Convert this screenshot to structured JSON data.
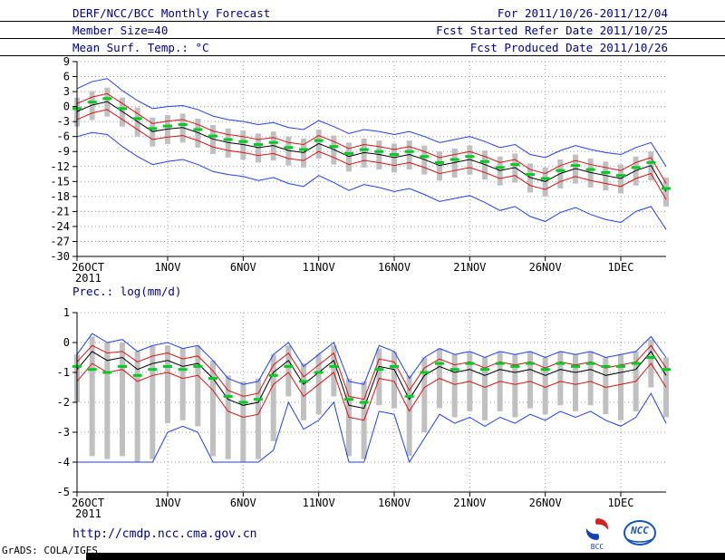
{
  "header": {
    "title": "DERF/NCC/BCC Monthly Forecast",
    "valid_range": "For 2011/10/26-2011/12/04",
    "member_size": "Member Size=40",
    "fcst_start": "Fcst Started Refer Date 2011/10/25",
    "temp_title": "Mean Surf. Temp.: °C",
    "fcst_produced": "Fcst Produced Date 2011/10/26"
  },
  "footer": {
    "url": "http://cmdp.ncc.cma.gov.cn",
    "credit": "GrADS: COLA/IGES",
    "bcc_logo_label": "BCC",
    "ncc_logo_label": "NCC"
  },
  "colors": {
    "header_text": "#00008b",
    "axis": "#000000",
    "grid": "#999999",
    "ensemble_max_min": "#1e3cff",
    "quartiles": "#dd1111",
    "ensemble_mean": "#000000",
    "median_dash": "#00cc22",
    "spread_bar": "#c0c0c0"
  },
  "chart_data": [
    {
      "type": "line",
      "title": "Mean Surf. Temp.: °C",
      "xlabel": "",
      "ylabel": "°C",
      "ylim": [
        -30,
        9
      ],
      "yticks": [
        9,
        6,
        3,
        0,
        -3,
        -6,
        -9,
        -12,
        -15,
        -18,
        -21,
        -24,
        -27,
        -30
      ],
      "x_days": 40,
      "x_sub_label": "2011",
      "xticks": [
        {
          "day": 0,
          "label": "26OCT"
        },
        {
          "day": 6,
          "label": "1NOV"
        },
        {
          "day": 11,
          "label": "6NOV"
        },
        {
          "day": 16,
          "label": "11NOV"
        },
        {
          "day": 21,
          "label": "16NOV"
        },
        {
          "day": 26,
          "label": "21NOV"
        },
        {
          "day": 31,
          "label": "26NOV"
        },
        {
          "day": 36,
          "label": "1DEC"
        }
      ],
      "series": [
        {
          "name": "ensemble-max",
          "color": "#1e3cff",
          "values": [
            3.6,
            5.0,
            5.6,
            3.2,
            1.2,
            -0.4,
            0.0,
            0.2,
            -0.6,
            -1.9,
            -2.6,
            -3.0,
            -3.6,
            -3.2,
            -4.2,
            -4.6,
            -2.8,
            -4.0,
            -5.4,
            -4.6,
            -5.0,
            -5.6,
            -5.0,
            -6.0,
            -7.2,
            -6.6,
            -6.0,
            -7.0,
            -8.2,
            -7.6,
            -9.6,
            -10.2,
            -8.8,
            -7.8,
            -8.6,
            -9.2,
            -9.6,
            -8.2,
            -7.2,
            -12.0
          ]
        },
        {
          "name": "ensemble-min",
          "color": "#1e3cff",
          "values": [
            -6.0,
            -5.2,
            -5.6,
            -8.0,
            -10.0,
            -11.6,
            -11.0,
            -10.6,
            -11.6,
            -13.0,
            -13.6,
            -14.0,
            -14.8,
            -14.2,
            -15.4,
            -16.0,
            -13.8,
            -15.2,
            -16.8,
            -15.6,
            -16.2,
            -17.0,
            -16.4,
            -17.6,
            -19.0,
            -18.4,
            -17.8,
            -19.2,
            -20.8,
            -20.0,
            -22.0,
            -23.0,
            -21.2,
            -20.2,
            -21.6,
            -22.6,
            -23.2,
            -21.0,
            -20.0,
            -24.6
          ]
        },
        {
          "name": "upper-quartile",
          "color": "#dd1111",
          "values": [
            0.6,
            1.9,
            2.6,
            0.6,
            -1.4,
            -3.4,
            -2.9,
            -2.6,
            -3.6,
            -4.9,
            -5.6,
            -6.0,
            -6.6,
            -6.2,
            -7.2,
            -7.6,
            -5.8,
            -7.0,
            -8.4,
            -7.6,
            -8.0,
            -8.6,
            -8.0,
            -9.0,
            -10.2,
            -9.6,
            -9.0,
            -10.0,
            -11.2,
            -10.6,
            -12.6,
            -13.4,
            -11.8,
            -10.8,
            -11.6,
            -12.2,
            -12.8,
            -11.2,
            -10.2,
            -15.4
          ]
        },
        {
          "name": "lower-quartile",
          "color": "#dd1111",
          "values": [
            -2.6,
            -1.3,
            -0.6,
            -2.6,
            -4.6,
            -6.6,
            -6.1,
            -5.8,
            -6.8,
            -8.1,
            -8.8,
            -9.2,
            -9.8,
            -9.4,
            -10.4,
            -10.8,
            -9.0,
            -10.2,
            -11.6,
            -10.8,
            -11.2,
            -11.8,
            -11.2,
            -12.2,
            -13.4,
            -12.8,
            -12.2,
            -13.2,
            -14.4,
            -13.8,
            -15.8,
            -16.6,
            -15.0,
            -14.0,
            -14.8,
            -15.4,
            -16.0,
            -14.4,
            -13.4,
            -18.6
          ]
        },
        {
          "name": "ensemble-mean",
          "color": "#000000",
          "values": [
            -1.0,
            0.3,
            1.0,
            -1.0,
            -3.0,
            -5.0,
            -4.5,
            -4.2,
            -5.2,
            -6.5,
            -7.2,
            -7.6,
            -8.2,
            -7.8,
            -8.8,
            -9.2,
            -7.4,
            -8.6,
            -10.0,
            -9.2,
            -9.6,
            -10.2,
            -9.6,
            -10.6,
            -11.8,
            -11.2,
            -10.6,
            -11.6,
            -12.8,
            -12.2,
            -14.2,
            -15.0,
            -13.4,
            -12.4,
            -13.2,
            -13.8,
            -14.4,
            -12.8,
            -11.8,
            -17.0
          ]
        }
      ],
      "median_dashes": {
        "name": "ensemble-median",
        "color": "#00cc22",
        "values": [
          -0.4,
          0.9,
          1.6,
          -0.4,
          -2.4,
          -4.4,
          -3.9,
          -3.6,
          -4.6,
          -5.9,
          -6.6,
          -7.0,
          -7.6,
          -7.2,
          -8.2,
          -8.6,
          -6.8,
          -8.0,
          -9.4,
          -8.6,
          -9.0,
          -9.6,
          -9.0,
          -10.0,
          -11.2,
          -10.6,
          -10.0,
          -11.0,
          -12.2,
          -11.6,
          -13.6,
          -14.4,
          -12.8,
          -11.8,
          -12.6,
          -13.2,
          -13.8,
          -12.2,
          -11.2,
          -16.4
        ]
      },
      "spread_bars": {
        "color": "#c0c0c0",
        "high": [
          1.8,
          3.1,
          3.8,
          1.8,
          -0.2,
          -2.2,
          -1.7,
          -1.4,
          -2.4,
          -3.7,
          -4.4,
          -4.8,
          -5.4,
          -5.0,
          -6.0,
          -6.4,
          -4.6,
          -5.8,
          -7.2,
          -6.4,
          -6.8,
          -7.4,
          -6.8,
          -7.8,
          -9.0,
          -8.4,
          -7.8,
          -8.8,
          -10.0,
          -9.4,
          -11.4,
          -12.2,
          -10.6,
          -9.6,
          -10.4,
          -11.0,
          -11.6,
          -10.0,
          -9.0,
          -14.2
        ],
        "low": [
          -4.0,
          -2.7,
          -2.0,
          -4.0,
          -6.0,
          -8.0,
          -7.5,
          -7.2,
          -8.2,
          -9.5,
          -10.2,
          -10.6,
          -11.2,
          -10.8,
          -11.8,
          -12.2,
          -10.4,
          -11.6,
          -13.0,
          -12.2,
          -12.6,
          -13.2,
          -12.6,
          -13.6,
          -14.8,
          -14.2,
          -13.6,
          -14.6,
          -15.8,
          -15.2,
          -17.2,
          -18.0,
          -16.4,
          -15.4,
          -16.2,
          -16.8,
          -17.4,
          -15.8,
          -14.8,
          -20.0
        ]
      }
    },
    {
      "type": "line",
      "title": "Prec.: log(mm/d)",
      "xlabel": "",
      "ylabel": "log(mm/d)",
      "ylim": [
        -5,
        1
      ],
      "yticks": [
        1,
        0,
        -1,
        -2,
        -3,
        -4,
        -5
      ],
      "x_days": 40,
      "x_sub_label": "2011",
      "xticks": [
        {
          "day": 0,
          "label": "26OCT"
        },
        {
          "day": 6,
          "label": "1NOV"
        },
        {
          "day": 11,
          "label": "6NOV"
        },
        {
          "day": 16,
          "label": "11NOV"
        },
        {
          "day": 21,
          "label": "16NOV"
        },
        {
          "day": 26,
          "label": "21NOV"
        },
        {
          "day": 31,
          "label": "26NOV"
        },
        {
          "day": 36,
          "label": "1DEC"
        }
      ],
      "series": [
        {
          "name": "ensemble-max",
          "color": "#1e3cff",
          "values": [
            -0.4,
            0.3,
            0.0,
            0.1,
            -0.3,
            -0.1,
            0.0,
            -0.2,
            -0.1,
            -0.6,
            -1.2,
            -1.4,
            -1.3,
            -0.4,
            0.0,
            -0.8,
            -0.4,
            0.0,
            -1.3,
            -1.4,
            -0.1,
            -0.3,
            -1.2,
            -0.5,
            -0.2,
            -0.4,
            -0.3,
            -0.5,
            -0.3,
            -0.4,
            -0.3,
            -0.5,
            -0.3,
            -0.4,
            -0.3,
            -0.5,
            -0.4,
            -0.3,
            0.2,
            -0.5
          ]
        },
        {
          "name": "ensemble-min",
          "color": "#1e3cff",
          "values": [
            -4.0,
            -4.0,
            -4.0,
            -4.0,
            -4.0,
            -4.0,
            -3.0,
            -2.8,
            -3.0,
            -4.0,
            -4.0,
            -4.0,
            -4.0,
            -3.6,
            -2.0,
            -2.9,
            -2.6,
            -2.0,
            -4.0,
            -4.0,
            -2.3,
            -2.4,
            -4.0,
            -3.2,
            -2.4,
            -2.7,
            -2.5,
            -2.8,
            -2.5,
            -2.7,
            -2.4,
            -2.6,
            -2.3,
            -2.5,
            -2.3,
            -2.6,
            -2.8,
            -2.5,
            -1.7,
            -2.7
          ]
        },
        {
          "name": "upper-quartile",
          "color": "#dd1111",
          "values": [
            -0.65,
            -0.1,
            -0.35,
            -0.3,
            -0.65,
            -0.45,
            -0.35,
            -0.55,
            -0.45,
            -0.95,
            -1.6,
            -1.8,
            -1.7,
            -0.75,
            -0.35,
            -1.15,
            -0.75,
            -0.35,
            -1.8,
            -1.9,
            -0.55,
            -0.65,
            -1.6,
            -0.85,
            -0.55,
            -0.75,
            -0.65,
            -0.85,
            -0.65,
            -0.75,
            -0.65,
            -0.85,
            -0.65,
            -0.75,
            -0.65,
            -0.85,
            -0.75,
            -0.65,
            -0.1,
            -0.85
          ]
        },
        {
          "name": "lower-quartile",
          "color": "#dd1111",
          "values": [
            -1.3,
            -0.7,
            -1.0,
            -0.9,
            -1.3,
            -1.1,
            -1.0,
            -1.2,
            -1.1,
            -1.6,
            -2.3,
            -2.5,
            -2.4,
            -1.4,
            -1.0,
            -1.8,
            -1.4,
            -1.0,
            -2.5,
            -2.6,
            -1.2,
            -1.3,
            -2.3,
            -1.5,
            -1.2,
            -1.4,
            -1.3,
            -1.5,
            -1.3,
            -1.4,
            -1.3,
            -1.5,
            -1.3,
            -1.4,
            -1.3,
            -1.5,
            -1.4,
            -1.3,
            -0.7,
            -1.5
          ]
        },
        {
          "name": "ensemble-mean",
          "color": "#000000",
          "values": [
            -0.9,
            -0.3,
            -0.6,
            -0.5,
            -0.9,
            -0.7,
            -0.6,
            -0.8,
            -0.7,
            -1.2,
            -1.9,
            -2.1,
            -2.0,
            -1.0,
            -0.6,
            -1.4,
            -1.0,
            -0.6,
            -2.1,
            -2.2,
            -0.8,
            -0.9,
            -1.9,
            -1.1,
            -0.8,
            -1.0,
            -0.9,
            -1.1,
            -0.9,
            -1.0,
            -0.9,
            -1.1,
            -0.9,
            -1.0,
            -0.9,
            -1.1,
            -1.0,
            -0.9,
            -0.3,
            -1.1
          ]
        }
      ],
      "median_dashes": {
        "name": "ensemble-median",
        "color": "#00cc22",
        "values": [
          -0.8,
          -0.9,
          -1.0,
          -0.8,
          -1.1,
          -0.9,
          -0.8,
          -0.9,
          -0.8,
          -1.2,
          -1.8,
          -2.0,
          -1.9,
          -1.1,
          -0.8,
          -1.3,
          -1.0,
          -0.8,
          -1.9,
          -2.0,
          -0.9,
          -0.8,
          -1.8,
          -1.0,
          -0.7,
          -0.9,
          -0.7,
          -0.9,
          -0.7,
          -0.8,
          -0.7,
          -0.9,
          -0.7,
          -0.8,
          -0.7,
          -0.8,
          -0.8,
          -0.7,
          -0.5,
          -0.9
        ]
      },
      "spread_bars": {
        "color": "#c0c0c0",
        "high": [
          -0.4,
          0.2,
          0.0,
          0.0,
          -0.3,
          -0.1,
          -0.1,
          -0.2,
          -0.1,
          -0.6,
          -1.1,
          -1.3,
          -1.2,
          -0.4,
          -0.1,
          -0.7,
          -0.4,
          -0.1,
          -1.2,
          -1.3,
          -0.2,
          -0.3,
          -1.1,
          -0.5,
          -0.2,
          -0.4,
          -0.3,
          -0.5,
          -0.3,
          -0.4,
          -0.3,
          -0.5,
          -0.3,
          -0.4,
          -0.3,
          -0.5,
          -0.4,
          -0.3,
          0.1,
          -0.5
        ],
        "low": [
          -2.0,
          -3.8,
          -3.9,
          -3.8,
          -4.0,
          -3.9,
          -2.7,
          -2.6,
          -2.8,
          -3.8,
          -3.9,
          -4.0,
          -3.9,
          -3.3,
          -1.8,
          -2.6,
          -2.4,
          -1.8,
          -3.8,
          -3.9,
          -2.1,
          -2.2,
          -3.8,
          -3.0,
          -2.2,
          -2.5,
          -2.3,
          -2.6,
          -2.3,
          -2.5,
          -2.2,
          -2.4,
          -2.1,
          -2.3,
          -2.1,
          -2.4,
          -2.6,
          -2.3,
          -1.5,
          -2.5
        ]
      }
    }
  ]
}
